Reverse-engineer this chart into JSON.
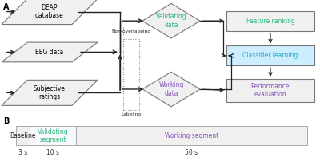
{
  "bg_color": "#ffffff",
  "panel_a_label": "A",
  "panel_b_label": "B",
  "deap_text": "DEAP\ndatabase",
  "eeg_text": "EEG data",
  "subj_text": "Subjective\nratings",
  "valid_text": "Validating\ndata",
  "work_text": "Working\ndata",
  "feat_text": "Feature ranking",
  "class_text": "Classifier learning",
  "perf_text": "Performance\nevaluation",
  "nonoverlap_text": "Non-overlapping",
  "labeling_text": "Labeling",
  "green": "#2db87a",
  "purple": "#8855bb",
  "cyan": "#22aacc",
  "black": "#222222",
  "gray_fill": "#f0f0f0",
  "gray_edge": "#888888",
  "cyan_fill": "#cceeff",
  "box_edge": "#777777",
  "seg_baseline_label": "Baseline",
  "seg_valid_label": "Validating\nsegment",
  "seg_work_label": "Working segment",
  "dur_3": "3 s",
  "dur_10": "10 s",
  "dur_50": "50 s"
}
